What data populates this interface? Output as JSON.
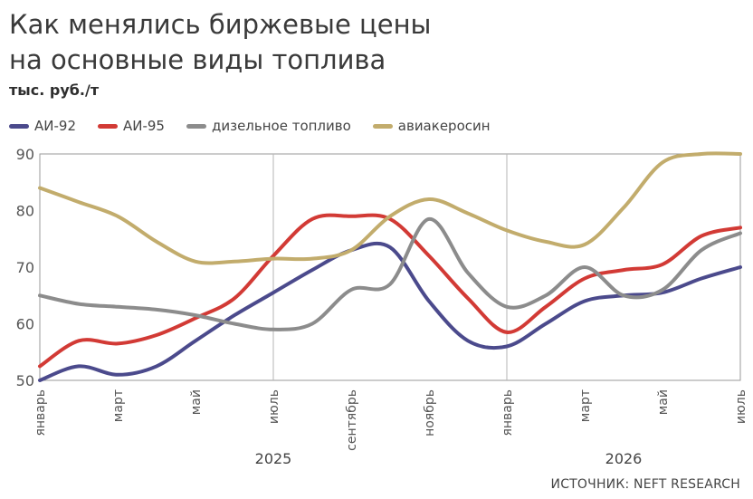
{
  "header": {
    "title_line1": "Как менялись биржевые цены",
    "title_line2": "на основные виды топлива",
    "unit": "тыс. руб./т"
  },
  "source": "ИСТОЧНИК: NEFT RESEARCH",
  "chart_data": {
    "type": "line",
    "x_tick_labels": [
      "январь",
      "март",
      "май",
      "июль",
      "сентябрь",
      "ноябрь",
      "январь",
      "март",
      "май",
      "июль"
    ],
    "year_labels": [
      "2025",
      "2026"
    ],
    "x_months": [
      "2025-01",
      "2025-02",
      "2025-03",
      "2025-04",
      "2025-05",
      "2025-06",
      "2025-07",
      "2025-08",
      "2025-09",
      "2025-10",
      "2025-11",
      "2025-12",
      "2026-01",
      "2026-02",
      "2026-03",
      "2026-04",
      "2026-05",
      "2026-06",
      "2026-07"
    ],
    "ylim": [
      50,
      90
    ],
    "yticks": [
      50,
      60,
      70,
      80,
      90
    ],
    "grid": "vertical lines at July 2025 and January 2026",
    "legend_position": "top-left",
    "series": [
      {
        "name": "АИ-92",
        "color": "#4b4a8c",
        "values": [
          50.0,
          52.5,
          51.0,
          52.5,
          57.0,
          61.5,
          65.5,
          69.5,
          73.0,
          73.5,
          64.0,
          57.0,
          56.0,
          60.0,
          64.0,
          65.0,
          65.5,
          68.0,
          70.0
        ]
      },
      {
        "name": "АИ-95",
        "color": "#d23a35",
        "values": [
          52.5,
          57.0,
          56.5,
          58.0,
          61.0,
          64.5,
          72.0,
          78.5,
          79.0,
          78.5,
          72.0,
          64.5,
          58.5,
          63.0,
          68.0,
          69.5,
          70.5,
          75.5,
          77.0
        ]
      },
      {
        "name": "дизельное топливо",
        "color": "#8c8c8c",
        "values": [
          65.0,
          63.5,
          63.0,
          62.5,
          61.5,
          60.0,
          59.0,
          60.0,
          66.0,
          67.0,
          78.5,
          69.0,
          63.0,
          65.0,
          70.0,
          65.0,
          66.0,
          73.0,
          76.0
        ]
      },
      {
        "name": "авиакеросин",
        "color": "#c2ac6c",
        "values": [
          84.0,
          81.5,
          79.0,
          74.5,
          71.0,
          71.0,
          71.5,
          71.5,
          73.0,
          79.0,
          82.0,
          79.5,
          76.5,
          74.5,
          74.0,
          80.5,
          88.5,
          90.0,
          90.0
        ]
      }
    ]
  }
}
